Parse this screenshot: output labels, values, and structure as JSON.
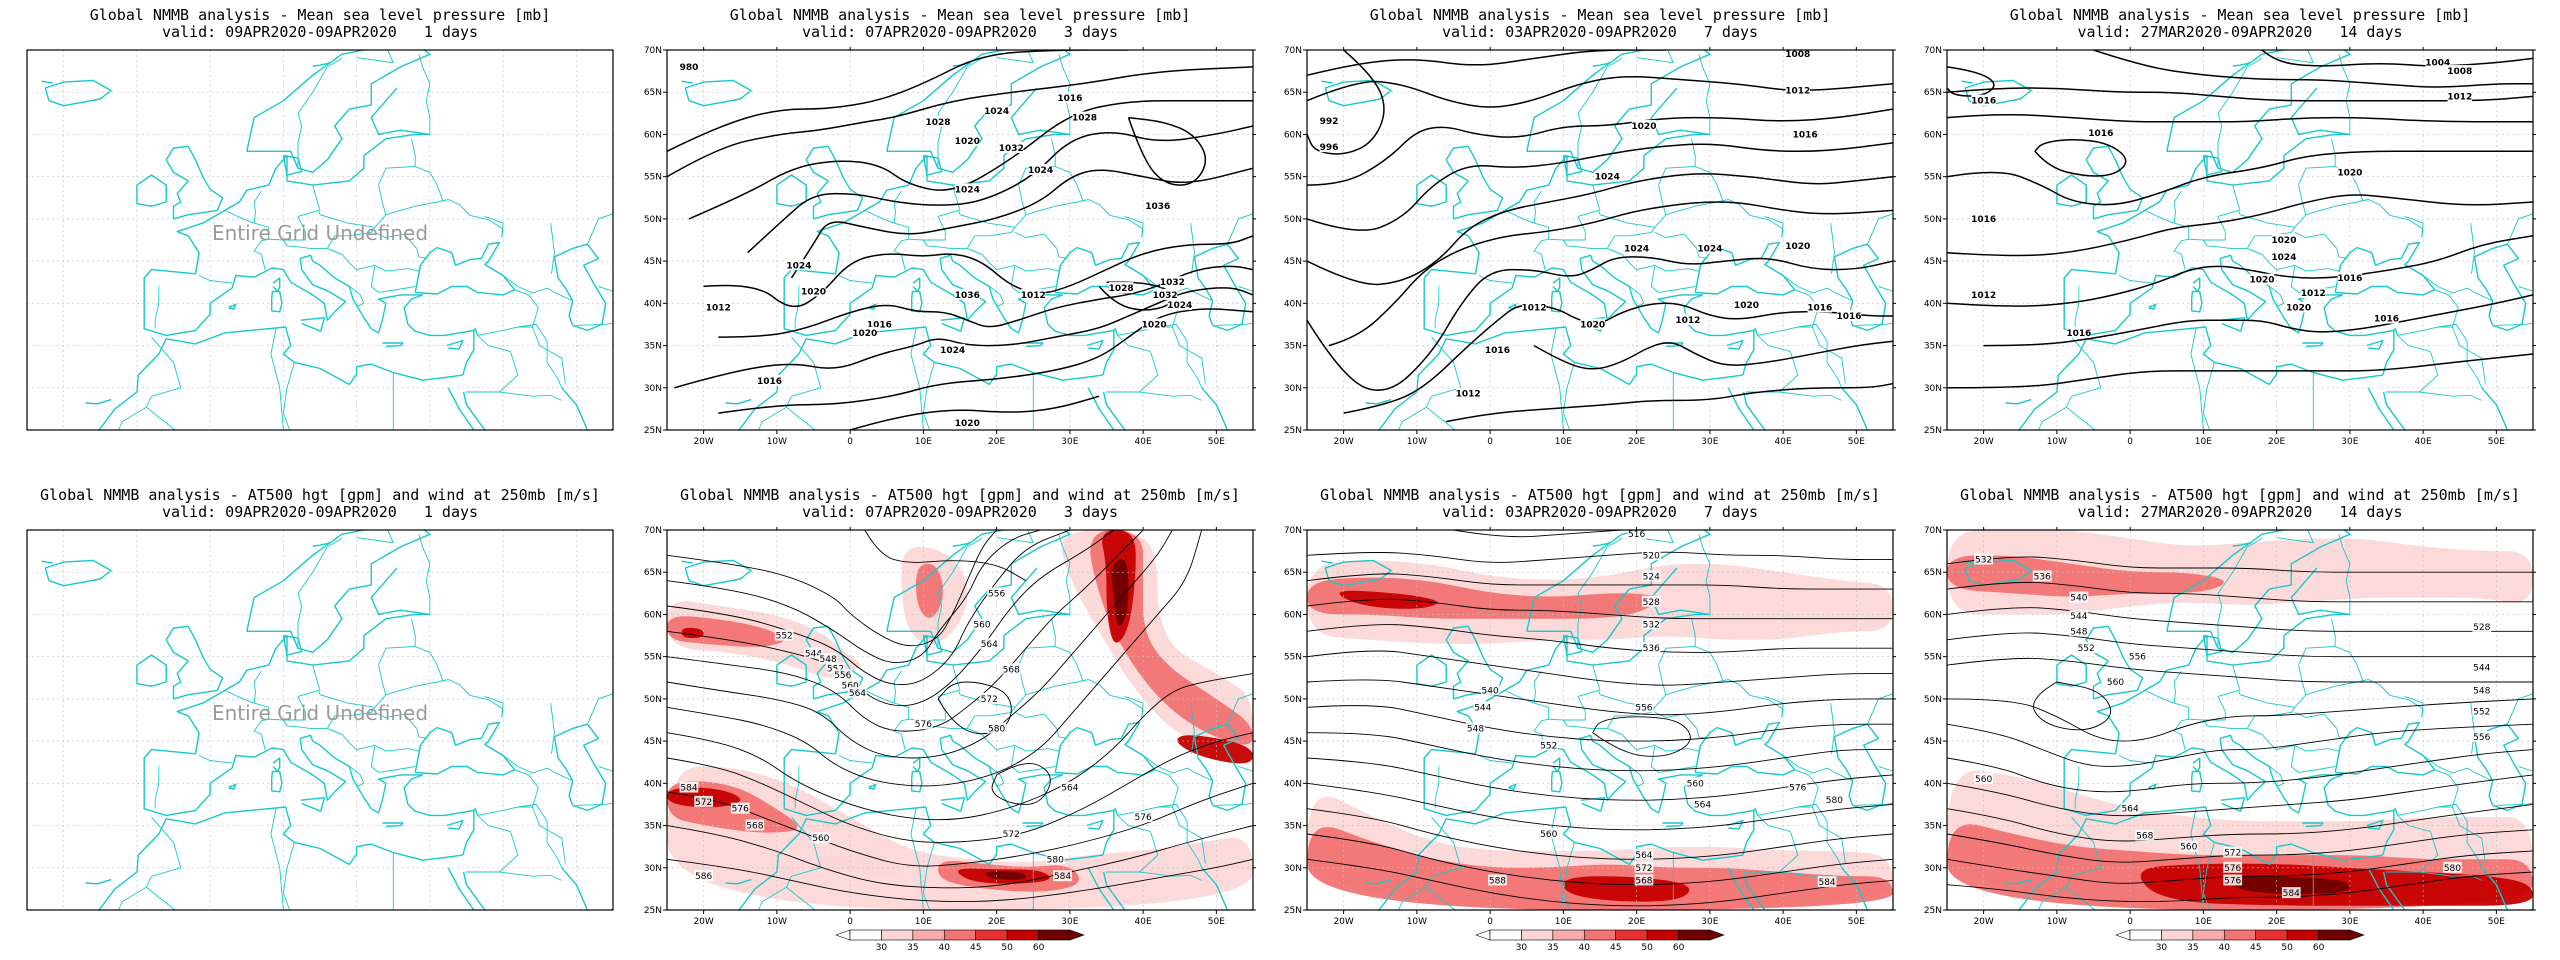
{
  "panels": [
    {
      "row": 0,
      "col": 0,
      "title": "Global NMMB analysis - Mean sea level pressure [mb]",
      "valid": "valid: 09APR2020-09APR2020   1 days",
      "undefined_text": "Entire Grid Undefined",
      "type": "mslp",
      "defined": false
    },
    {
      "row": 0,
      "col": 1,
      "title": "Global NMMB analysis - Mean sea level pressure [mb]",
      "valid": "valid: 07APR2020-09APR2020   3 days",
      "type": "mslp",
      "defined": true,
      "contour_labels": [
        "980",
        "1024",
        "1028",
        "1032",
        "1016",
        "1020",
        "1024",
        "1028",
        "1036",
        "1024",
        "1028",
        "1032",
        "1024",
        "1032",
        "1020",
        "1036",
        "1016",
        "1012",
        "1020",
        "1024",
        "1024",
        "1012",
        "1020",
        "1016",
        "1020"
      ]
    },
    {
      "row": 0,
      "col": 2,
      "title": "Global NMMB analysis - Mean sea level pressure [mb]",
      "valid": "valid: 03APR2020-09APR2020   7 days",
      "type": "mslp",
      "defined": true,
      "contour_labels": [
        "1008",
        "1012",
        "1016",
        "992",
        "996",
        "1020",
        "1024",
        "1024",
        "1024",
        "1020",
        "1016",
        "1012",
        "1020",
        "1016",
        "1012",
        "1020",
        "1016",
        "1012"
      ]
    },
    {
      "row": 0,
      "col": 3,
      "title": "Global NMMB analysis - Mean sea level pressure [mb]",
      "valid": "valid: 27MAR2020-09APR2020   14 days",
      "type": "mslp",
      "defined": true,
      "contour_labels": [
        "1004",
        "1008",
        "1012",
        "1016",
        "1016",
        "1020",
        "1016",
        "1020",
        "1024",
        "1020",
        "1016",
        "1020",
        "1016",
        "1012",
        "1012",
        "1016"
      ]
    },
    {
      "row": 1,
      "col": 0,
      "title": "Global NMMB analysis - AT500 hgt [gpm] and wind at 250mb [m/s]",
      "valid": "valid: 09APR2020-09APR2020   1 days",
      "undefined_text": "Entire Grid Undefined",
      "type": "z500",
      "defined": false
    },
    {
      "row": 1,
      "col": 1,
      "title": "Global NMMB analysis - AT500 hgt [gpm] and wind at 250mb [m/s]",
      "valid": "valid: 07APR2020-09APR2020   3 days",
      "type": "z500",
      "defined": true,
      "contour_labels": [
        "544",
        "548",
        "552",
        "556",
        "560",
        "564",
        "552",
        "556",
        "560",
        "564",
        "568",
        "572",
        "576",
        "580",
        "584",
        "572",
        "576",
        "568",
        "560",
        "564",
        "572",
        "576",
        "580",
        "584",
        "586"
      ]
    },
    {
      "row": 1,
      "col": 2,
      "title": "Global NMMB analysis - AT500 hgt [gpm] and wind at 250mb [m/s]",
      "valid": "valid: 03APR2020-09APR2020   7 days",
      "type": "z500",
      "defined": true,
      "contour_labels": [
        "516",
        "520",
        "524",
        "528",
        "532",
        "536",
        "540",
        "544",
        "548",
        "552",
        "556",
        "560",
        "564",
        "568",
        "572",
        "576",
        "580",
        "584",
        "588",
        "560",
        "564"
      ]
    },
    {
      "row": 1,
      "col": 3,
      "title": "Global NMMB analysis - AT500 hgt [gpm] and wind at 250mb [m/s]",
      "valid": "valid: 27MAR2020-09APR2020   14 days",
      "type": "z500",
      "defined": true,
      "contour_labels": [
        "532",
        "536",
        "540",
        "544",
        "548",
        "552",
        "556",
        "560",
        "528",
        "544",
        "548",
        "552",
        "556",
        "560",
        "564",
        "568",
        "572",
        "576",
        "576",
        "580",
        "584",
        "560"
      ]
    }
  ],
  "axes": {
    "lon_ticks": [
      "20W",
      "10W",
      "0",
      "10E",
      "20E",
      "30E",
      "40E",
      "50E"
    ],
    "lat_ticks": [
      "70N",
      "65N",
      "60N",
      "55N",
      "50N",
      "45N",
      "40N",
      "35N",
      "30N",
      "25N"
    ]
  },
  "colorbar": {
    "ticks": [
      "30",
      "35",
      "40",
      "45",
      "50",
      "60"
    ],
    "colors": [
      "#ffffff",
      "#fcd6d6",
      "#f8a9a9",
      "#f27474",
      "#e83232",
      "#c50000",
      "#700000"
    ]
  },
  "colors": {
    "coast": "#17c9c9",
    "contour": "#000000",
    "wind_low": "#fcd6d6",
    "wind_mid": "#f27474",
    "wind_high": "#c50000",
    "wind_max": "#700000",
    "undefined_text": "#9a9a9a"
  }
}
